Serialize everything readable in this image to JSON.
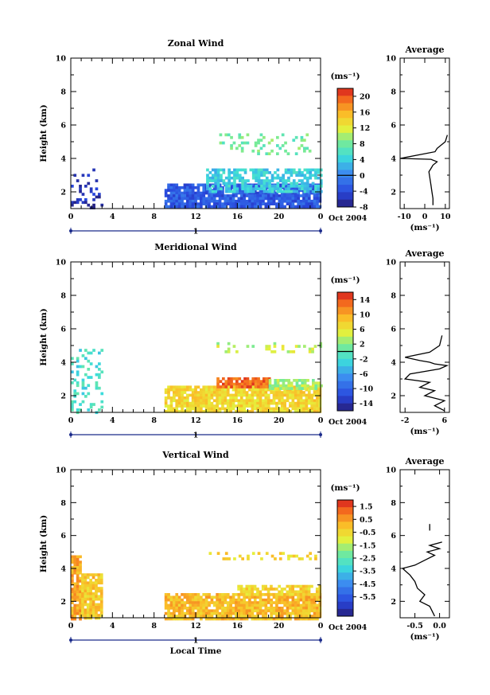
{
  "chart_data": [
    {
      "type": "heatmap",
      "title": "Zonal Wind",
      "xlabel": "",
      "ylabel": "Height (km)",
      "xlim": [
        0,
        24
      ],
      "ylim": [
        1,
        10
      ],
      "x_ticks": [
        "0",
        "4",
        "8",
        "12",
        "16",
        "20",
        "0"
      ],
      "y_ticks": [
        "2",
        "4",
        "6",
        "8",
        "10"
      ],
      "date_label": "Oct 2004",
      "day_label": "1",
      "colorbar": {
        "unit": "(ms⁻¹)",
        "range": [
          -8,
          22
        ],
        "ticks": [
          "20",
          "16",
          "12",
          "8",
          "4",
          "0",
          "-4",
          "-8"
        ],
        "contour_at": 0
      },
      "data_regions": [
        {
          "t": [
            0,
            3
          ],
          "z": [
            1.1,
            3.4
          ],
          "value": -6,
          "density": 0.25
        },
        {
          "t": [
            9,
            24
          ],
          "z": [
            1.1,
            2.5
          ],
          "value": -3,
          "density": 0.9
        },
        {
          "t": [
            13,
            24
          ],
          "z": [
            2.0,
            3.4
          ],
          "value": 4,
          "density": 0.7
        },
        {
          "t": [
            14,
            23
          ],
          "z": [
            4.3,
            5.5
          ],
          "value": 8,
          "density": 0.2
        }
      ],
      "profile": {
        "title": "Average",
        "xlabel": "(ms⁻¹)",
        "xlim": [
          -12,
          12
        ],
        "x_ticks": [
          "-10",
          "0",
          "10"
        ],
        "y_ticks": [
          "2",
          "4",
          "6",
          "8",
          "10"
        ],
        "x": [
          4,
          4,
          3.5,
          3,
          2.5,
          2,
          3,
          4,
          6,
          3,
          -12,
          5,
          6,
          10,
          11
        ],
        "z": [
          1.2,
          1.6,
          2.0,
          2.4,
          2.8,
          3.2,
          3.4,
          3.6,
          3.8,
          3.95,
          4.0,
          4.4,
          4.6,
          5.0,
          5.4
        ]
      }
    },
    {
      "type": "heatmap",
      "title": "Meridional Wind",
      "xlabel": "",
      "ylabel": "Height (km)",
      "xlim": [
        0,
        24
      ],
      "ylim": [
        1,
        10
      ],
      "x_ticks": [
        "0",
        "4",
        "8",
        "12",
        "16",
        "20",
        "0"
      ],
      "y_ticks": [
        "2",
        "4",
        "6",
        "8",
        "10"
      ],
      "date_label": "Oct 2004",
      "day_label": "1",
      "colorbar": {
        "unit": "(ms⁻¹)",
        "range": [
          -16,
          16
        ],
        "ticks": [
          "14",
          "10",
          "6",
          "2",
          "-2",
          "-6",
          "-10",
          "-14"
        ],
        "contour_at": 0
      },
      "data_regions": [
        {
          "t": [
            0,
            3
          ],
          "z": [
            1.0,
            4.8
          ],
          "value": -2,
          "density": 0.25
        },
        {
          "t": [
            9,
            24
          ],
          "z": [
            1.1,
            2.6
          ],
          "value": 7,
          "density": 0.9
        },
        {
          "t": [
            14,
            19
          ],
          "z": [
            2.6,
            3.1
          ],
          "value": 13,
          "density": 0.9
        },
        {
          "t": [
            19,
            24
          ],
          "z": [
            2.5,
            3.0
          ],
          "value": 3,
          "density": 0.7
        },
        {
          "t": [
            14,
            24
          ],
          "z": [
            4.7,
            5.2
          ],
          "value": 4,
          "density": 0.2
        }
      ],
      "profile": {
        "title": "Average",
        "xlabel": "(ms⁻¹)",
        "xlim": [
          -3,
          7
        ],
        "x_ticks": [
          "-2",
          "6"
        ],
        "y_ticks": [
          "2",
          "4",
          "6",
          "8",
          "10"
        ],
        "x": [
          6,
          4,
          6,
          2,
          4,
          1,
          3,
          -2,
          -1,
          5,
          6.5,
          4,
          3,
          1,
          -2,
          3,
          5,
          5.5
        ],
        "z": [
          1.1,
          1.4,
          1.7,
          2.0,
          2.3,
          2.5,
          2.8,
          3.0,
          3.3,
          3.6,
          3.8,
          3.9,
          4.0,
          4.1,
          4.3,
          4.6,
          5.0,
          5.6
        ]
      }
    },
    {
      "type": "heatmap",
      "title": "Vertical Wind",
      "xlabel": "Local Time",
      "ylabel": "Height (km)",
      "xlim": [
        0,
        24
      ],
      "ylim": [
        1,
        10
      ],
      "x_ticks": [
        "0",
        "4",
        "8",
        "12",
        "16",
        "20",
        "0"
      ],
      "y_ticks": [
        "2",
        "4",
        "6",
        "8",
        "10"
      ],
      "date_label": "Oct 2004",
      "day_label": "1",
      "colorbar": {
        "unit": "(ms⁻¹)",
        "range": [
          -7,
          2
        ],
        "ticks": [
          "1.5",
          "0.5",
          "-0.5",
          "-1.5",
          "-2.5",
          "-3.5",
          "-4.5",
          "-5.5"
        ],
        "contour_at": null
      },
      "data_regions": [
        {
          "t": [
            0,
            1
          ],
          "z": [
            1.0,
            4.8
          ],
          "value": 0.3,
          "density": 0.85
        },
        {
          "t": [
            1,
            3
          ],
          "z": [
            1.0,
            3.7
          ],
          "value": -0.2,
          "density": 0.85
        },
        {
          "t": [
            9,
            24
          ],
          "z": [
            1.0,
            2.5
          ],
          "value": 0.0,
          "density": 0.9
        },
        {
          "t": [
            16,
            24
          ],
          "z": [
            2.5,
            3.0
          ],
          "value": -0.4,
          "density": 0.8
        },
        {
          "t": [
            13,
            24
          ],
          "z": [
            4.6,
            5.0
          ],
          "value": -0.5,
          "density": 0.15
        }
      ],
      "profile": {
        "title": "Average",
        "xlabel": "(ms⁻¹)",
        "xlim": [
          -0.8,
          0.2
        ],
        "x_ticks": [
          "-0.5",
          "0.0"
        ],
        "y_ticks": [
          "2",
          "4",
          "6",
          "8",
          "10"
        ],
        "x": [
          -0.1,
          -0.15,
          -0.2,
          -0.4,
          -0.3,
          -0.45,
          -0.5,
          -0.6,
          -0.75,
          -0.5,
          -0.3,
          -0.1,
          -0.25,
          0.0,
          -0.2,
          0.05
        ],
        "z": [
          1.1,
          1.4,
          1.7,
          2.0,
          2.4,
          2.8,
          3.2,
          3.6,
          4.0,
          4.2,
          4.5,
          4.8,
          5.0,
          5.2,
          5.4,
          5.6
        ],
        "marker": {
          "x": -0.2,
          "z": [
            6.3,
            6.7
          ]
        }
      }
    }
  ]
}
